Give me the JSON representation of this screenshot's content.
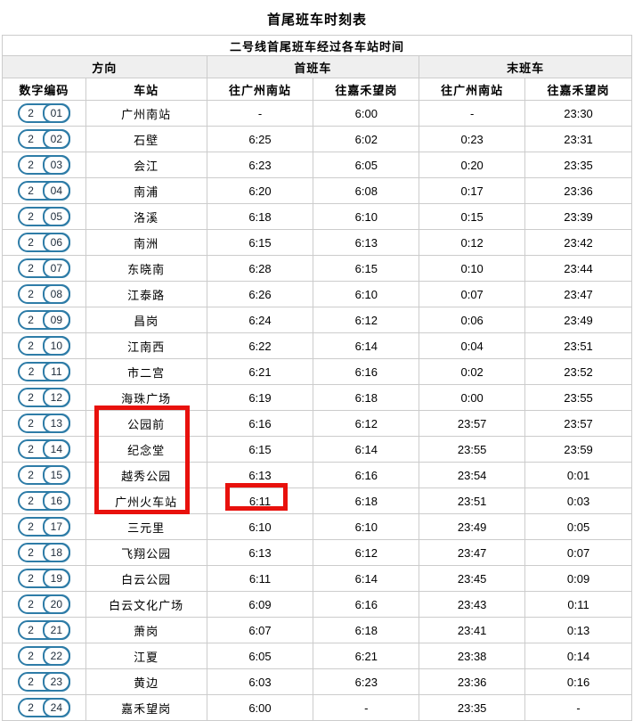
{
  "page": {
    "title": "首尾班车时刻表"
  },
  "colors": {
    "header_red": "#cc1111",
    "badge_blue": "#2e7ca7",
    "highlight_red": "#e8110d",
    "group_header_bg": "#efefef"
  },
  "line": {
    "number": "2"
  },
  "table": {
    "subtitle": "二号线首尾班车经过各车站时间",
    "group_headers": {
      "direction": "方向",
      "first_train": "首班车",
      "last_train": "末班车"
    },
    "column_headers": {
      "code": "数字编码",
      "station": "车站",
      "first_to_south": "往广州南站",
      "first_to_jiahe": "往嘉禾望岗",
      "last_to_south": "往广州南站",
      "last_to_jiahe": "往嘉禾望岗"
    },
    "rows": [
      {
        "code": "01",
        "station": "广州南站",
        "first_to_south": "-",
        "first_to_jiahe": "6:00",
        "last_to_south": "-",
        "last_to_jiahe": "23:30"
      },
      {
        "code": "02",
        "station": "石壁",
        "first_to_south": "6:25",
        "first_to_jiahe": "6:02",
        "last_to_south": "0:23",
        "last_to_jiahe": "23:31"
      },
      {
        "code": "03",
        "station": "会江",
        "first_to_south": "6:23",
        "first_to_jiahe": "6:05",
        "last_to_south": "0:20",
        "last_to_jiahe": "23:35"
      },
      {
        "code": "04",
        "station": "南浦",
        "first_to_south": "6:20",
        "first_to_jiahe": "6:08",
        "last_to_south": "0:17",
        "last_to_jiahe": "23:36"
      },
      {
        "code": "05",
        "station": "洛溪",
        "first_to_south": "6:18",
        "first_to_jiahe": "6:10",
        "last_to_south": "0:15",
        "last_to_jiahe": "23:39"
      },
      {
        "code": "06",
        "station": "南洲",
        "first_to_south": "6:15",
        "first_to_jiahe": "6:13",
        "last_to_south": "0:12",
        "last_to_jiahe": "23:42"
      },
      {
        "code": "07",
        "station": "东晓南",
        "first_to_south": "6:28",
        "first_to_jiahe": "6:15",
        "last_to_south": "0:10",
        "last_to_jiahe": "23:44"
      },
      {
        "code": "08",
        "station": "江泰路",
        "first_to_south": "6:26",
        "first_to_jiahe": "6:10",
        "last_to_south": "0:07",
        "last_to_jiahe": "23:47"
      },
      {
        "code": "09",
        "station": "昌岗",
        "first_to_south": "6:24",
        "first_to_jiahe": "6:12",
        "last_to_south": "0:06",
        "last_to_jiahe": "23:49"
      },
      {
        "code": "10",
        "station": "江南西",
        "first_to_south": "6:22",
        "first_to_jiahe": "6:14",
        "last_to_south": "0:04",
        "last_to_jiahe": "23:51"
      },
      {
        "code": "11",
        "station": "市二宫",
        "first_to_south": "6:21",
        "first_to_jiahe": "6:16",
        "last_to_south": "0:02",
        "last_to_jiahe": "23:52"
      },
      {
        "code": "12",
        "station": "海珠广场",
        "first_to_south": "6:19",
        "first_to_jiahe": "6:18",
        "last_to_south": "0:00",
        "last_to_jiahe": "23:55"
      },
      {
        "code": "13",
        "station": "公园前",
        "first_to_south": "6:16",
        "first_to_jiahe": "6:12",
        "last_to_south": "23:57",
        "last_to_jiahe": "23:57"
      },
      {
        "code": "14",
        "station": "纪念堂",
        "first_to_south": "6:15",
        "first_to_jiahe": "6:14",
        "last_to_south": "23:55",
        "last_to_jiahe": "23:59"
      },
      {
        "code": "15",
        "station": "越秀公园",
        "first_to_south": "6:13",
        "first_to_jiahe": "6:16",
        "last_to_south": "23:54",
        "last_to_jiahe": "0:01"
      },
      {
        "code": "16",
        "station": "广州火车站",
        "first_to_south": "6:11",
        "first_to_jiahe": "6:18",
        "last_to_south": "23:51",
        "last_to_jiahe": "0:03"
      },
      {
        "code": "17",
        "station": "三元里",
        "first_to_south": "6:10",
        "first_to_jiahe": "6:10",
        "last_to_south": "23:49",
        "last_to_jiahe": "0:05"
      },
      {
        "code": "18",
        "station": "飞翔公园",
        "first_to_south": "6:13",
        "first_to_jiahe": "6:12",
        "last_to_south": "23:47",
        "last_to_jiahe": "0:07"
      },
      {
        "code": "19",
        "station": "白云公园",
        "first_to_south": "6:11",
        "first_to_jiahe": "6:14",
        "last_to_south": "23:45",
        "last_to_jiahe": "0:09"
      },
      {
        "code": "20",
        "station": "白云文化广场",
        "first_to_south": "6:09",
        "first_to_jiahe": "6:16",
        "last_to_south": "23:43",
        "last_to_jiahe": "0:11"
      },
      {
        "code": "21",
        "station": "萧岗",
        "first_to_south": "6:07",
        "first_to_jiahe": "6:18",
        "last_to_south": "23:41",
        "last_to_jiahe": "0:13"
      },
      {
        "code": "22",
        "station": "江夏",
        "first_to_south": "6:05",
        "first_to_jiahe": "6:21",
        "last_to_south": "23:38",
        "last_to_jiahe": "0:14"
      },
      {
        "code": "23",
        "station": "黄边",
        "first_to_south": "6:03",
        "first_to_jiahe": "6:23",
        "last_to_south": "23:36",
        "last_to_jiahe": "0:16"
      },
      {
        "code": "24",
        "station": "嘉禾望岗",
        "first_to_south": "6:00",
        "first_to_jiahe": "-",
        "last_to_south": "23:35",
        "last_to_jiahe": "-"
      }
    ]
  },
  "annotations": {
    "highlighted_stations": [
      "公园前",
      "纪念堂",
      "越秀公园",
      "广州火车站"
    ],
    "highlighted_time": "6:11"
  }
}
